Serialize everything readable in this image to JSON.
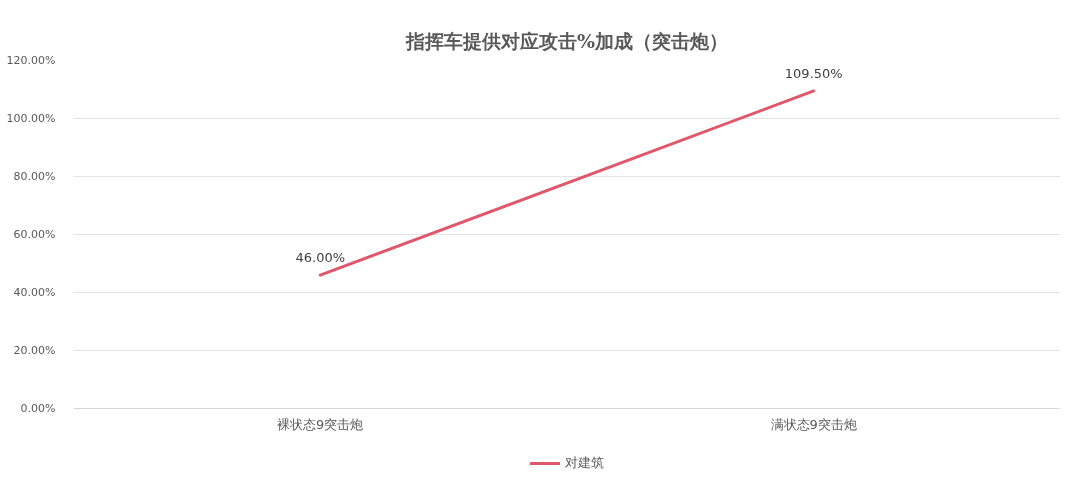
{
  "chart_data": {
    "type": "line",
    "title": "指挥车提供对应攻击%加成（突击炮）",
    "categories": [
      "裸状态9突击炮",
      "满状态9突击炮"
    ],
    "series": [
      {
        "name": "对建筑",
        "color": "#e0566b",
        "values": [
          46.0,
          109.5
        ],
        "value_labels": [
          "46.00%",
          "109.50%"
        ]
      }
    ],
    "ylim": [
      0,
      120
    ],
    "yticks": [
      {
        "value": 0,
        "label": "0.00%"
      },
      {
        "value": 20,
        "label": "20.00%"
      },
      {
        "value": 40,
        "label": "40.00%"
      },
      {
        "value": 60,
        "label": "60.00%"
      },
      {
        "value": 80,
        "label": "80.00%"
      },
      {
        "value": 100,
        "label": "100.00%"
      },
      {
        "value": 120,
        "label": "120.00%"
      }
    ],
    "grid": "y",
    "legend": "bottom",
    "line_style": "solid"
  }
}
